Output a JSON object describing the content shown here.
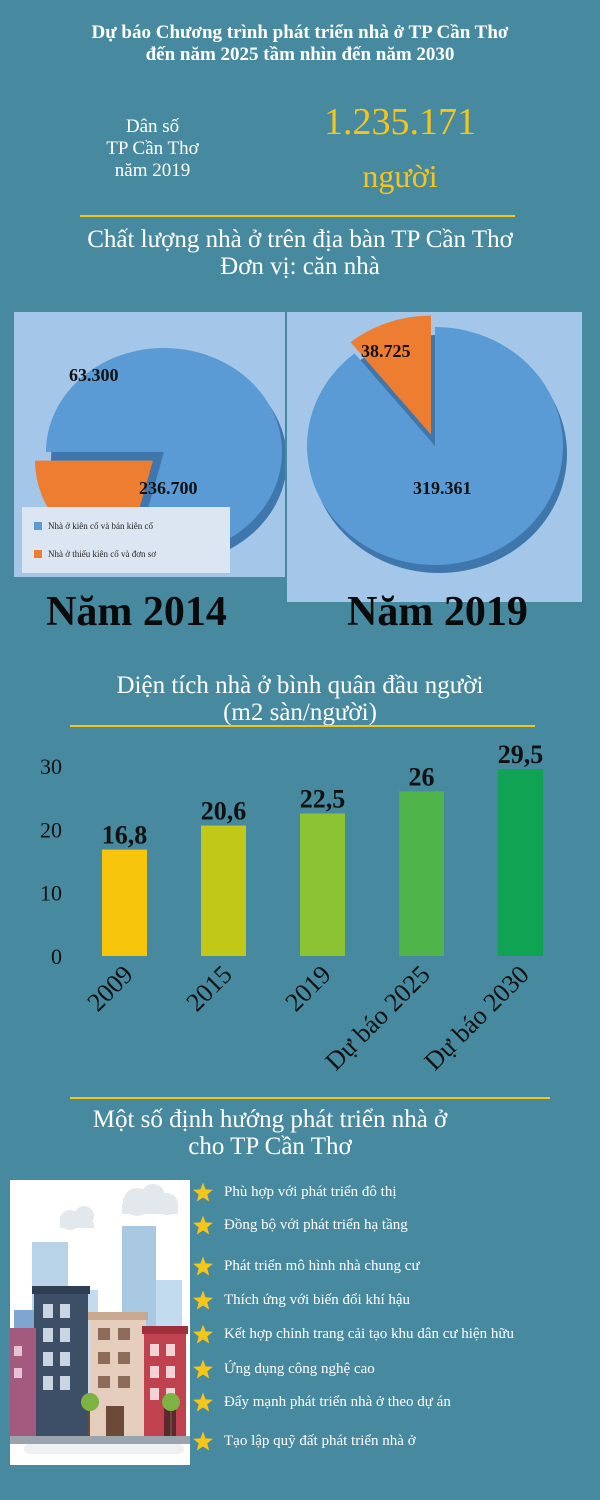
{
  "title": {
    "line1": "Dự báo Chương trình phát triển nhà ở TP Cần Thơ",
    "line2": "đến năm 2025 tầm nhìn đến năm 2030"
  },
  "population": {
    "label_lines": [
      "Dân số",
      "TP Cần Thơ",
      "năm 2019"
    ],
    "value": "1.235.171",
    "unit": "người"
  },
  "housing_quality": {
    "title_line1": "Chất lượng nhà ở trên địa bàn TP Cần Thơ",
    "title_line2": "Đơn vị: căn nhà"
  },
  "legend": {
    "solid": "Nhà ở kiên cố và bán kiên cố",
    "weak": "Nhà ở thiếu kiên cố và đơn sơ"
  },
  "years": {
    "y2014": "Năm 2014",
    "y2019": "Năm 2019"
  },
  "area_chart": {
    "title_line1": "Diện tích nhà ở bình quân đầu người",
    "title_line2": "(m2 sàn/người)"
  },
  "orientations": {
    "title_line1": "Một số định hướng phát triển nhà ở",
    "title_line2": "cho TP Cần Thơ",
    "items": [
      "Phù hợp với phát triển đô thị",
      "Đồng bộ với phát triển hạ tầng",
      "Phát triển mô hình nhà chung cư",
      "Thích ứng với biến đổi khí hậu",
      "Kết hợp chỉnh trang cải tạo khu dân cư hiện hữu",
      "Ứng dụng công nghệ cao",
      "Đẩy mạnh phát triển nhà ở theo dự án",
      "Tạo lập quỹ đất phát triển nhà ở"
    ]
  },
  "colors": {
    "pie_solid": "#5b9bd5",
    "pie_weak": "#ed7d31",
    "accent": "#f5c518"
  },
  "chart_data": [
    {
      "type": "pie",
      "title": "Năm 2014",
      "labels": [
        "Nhà ở kiên cố và bán kiên cố",
        "Nhà ở thiếu kiên cố và đơn sơ"
      ],
      "values": [
        236700,
        63300
      ],
      "value_labels": [
        "236.700",
        "63.300"
      ]
    },
    {
      "type": "pie",
      "title": "Năm 2019",
      "labels": [
        "Nhà ở kiên cố và bán kiên cố",
        "Nhà ở thiếu kiên cố và đơn sơ"
      ],
      "values": [
        319361,
        38725
      ],
      "value_labels": [
        "319.361",
        "38.725"
      ]
    },
    {
      "type": "bar",
      "title": "Diện tích nhà ở bình quân đầu người (m2 sàn/người)",
      "categories": [
        "2009",
        "2015",
        "2019",
        "Dự báo 2025",
        "Dự báo 2030"
      ],
      "values": [
        16.8,
        20.6,
        22.5,
        26,
        29.5
      ],
      "value_labels": [
        "16,8",
        "20,6",
        "22,5",
        "26",
        "29,5"
      ],
      "bar_colors": [
        "#f6c40a",
        "#c2c817",
        "#8cc332",
        "#4fb449",
        "#10a354"
      ],
      "ylim": [
        0,
        30
      ],
      "yticks": [
        0,
        10,
        20,
        30
      ],
      "ytick_labels": [
        "0",
        "10",
        "20",
        "30"
      ]
    }
  ]
}
